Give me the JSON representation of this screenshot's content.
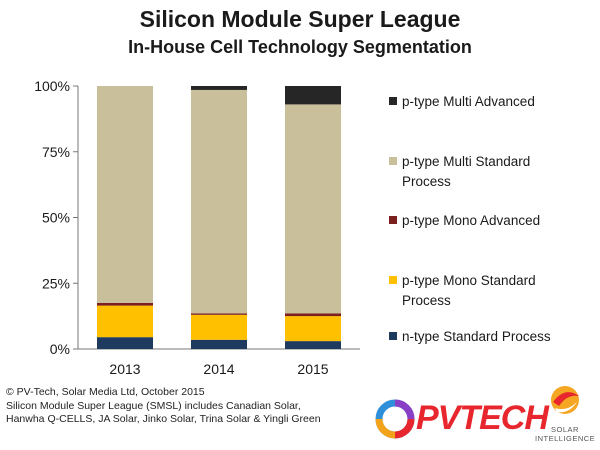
{
  "chart_data": {
    "type": "bar",
    "stacked": true,
    "title": "Silicon Module Super League",
    "subtitle": "In-House Cell Technology Segmentation",
    "categories": [
      "2013",
      "2014",
      "2015"
    ],
    "ylim": [
      0,
      100
    ],
    "yticks": [
      "0%",
      "25%",
      "50%",
      "75%",
      "100%"
    ],
    "ytick_values": [
      0,
      25,
      50,
      75,
      100
    ],
    "legend_position": "right",
    "series": [
      {
        "name": "n-type Standard Process",
        "color": "#1f3a5f",
        "values": [
          4.5,
          3.5,
          3.0
        ]
      },
      {
        "name": "p-type Mono Standard Process",
        "color": "#ffc000",
        "values": [
          12.0,
          9.5,
          9.5
        ]
      },
      {
        "name": "p-type Mono Advanced",
        "color": "#7b1f1f",
        "values": [
          1.0,
          0.5,
          1.0
        ]
      },
      {
        "name": "p-type Multi Standard Process",
        "color": "#c9bf9b",
        "values": [
          82.5,
          85.0,
          79.5
        ]
      },
      {
        "name": "p-type Multi Advanced",
        "color": "#262626",
        "values": [
          0.0,
          1.5,
          7.0
        ]
      }
    ],
    "legend_order": [
      [
        "p-type Multi Advanced"
      ],
      [
        "p-type Multi Standard",
        "Process"
      ],
      [
        "p-type Mono Advanced"
      ],
      [
        "p-type Mono Standard",
        "Process"
      ],
      [
        "n-type Standard Process"
      ]
    ]
  },
  "footer": {
    "line1": "© PV-Tech, Solar Media Ltd, October 2015",
    "line2": "Silicon Module Super League (SMSL) includes Canadian Solar,",
    "line3": "Hanwha Q-CELLS, JA Solar, Jinko Solar, Trina Solar & Yingli Green"
  },
  "logos": {
    "pvtech": "PVTECH",
    "solar_intelligence_line1": "SOLAR",
    "solar_intelligence_line2": "INTELLIGENCE",
    "pvtech_icon": "pvtech-ring-icon",
    "solar_icon": "solar-swirl-icon"
  }
}
